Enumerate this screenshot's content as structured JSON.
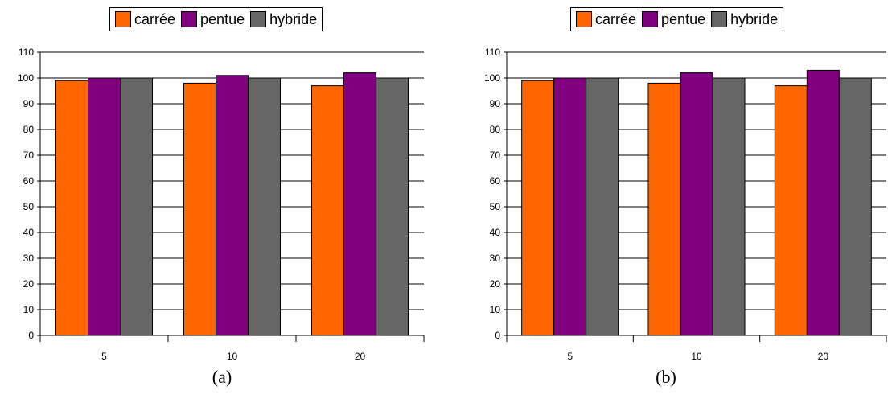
{
  "chart_data": [
    {
      "type": "bar",
      "caption": "(a)",
      "categories": [
        "5",
        "10",
        "20"
      ],
      "series": [
        {
          "name": "carrée",
          "values": [
            99,
            98,
            97
          ],
          "color": "#ff6600"
        },
        {
          "name": "pentue",
          "values": [
            100,
            101,
            102
          ],
          "color": "#800080"
        },
        {
          "name": "hybride",
          "values": [
            100,
            100,
            100
          ],
          "color": "#666666"
        }
      ],
      "ylim": [
        0,
        110
      ],
      "yticks": [
        0,
        10,
        20,
        30,
        40,
        50,
        60,
        70,
        80,
        90,
        100,
        110
      ],
      "grid": true,
      "legend_position": "top-center"
    },
    {
      "type": "bar",
      "caption": "(b)",
      "categories": [
        "5",
        "10",
        "20"
      ],
      "series": [
        {
          "name": "carrée",
          "values": [
            99,
            98,
            97
          ],
          "color": "#ff6600"
        },
        {
          "name": "pentue",
          "values": [
            100,
            102,
            103
          ],
          "color": "#800080"
        },
        {
          "name": "hybride",
          "values": [
            100,
            100,
            100
          ],
          "color": "#666666"
        }
      ],
      "ylim": [
        0,
        110
      ],
      "yticks": [
        0,
        10,
        20,
        30,
        40,
        50,
        60,
        70,
        80,
        90,
        100,
        110
      ],
      "grid": true,
      "legend_position": "top-center"
    }
  ]
}
